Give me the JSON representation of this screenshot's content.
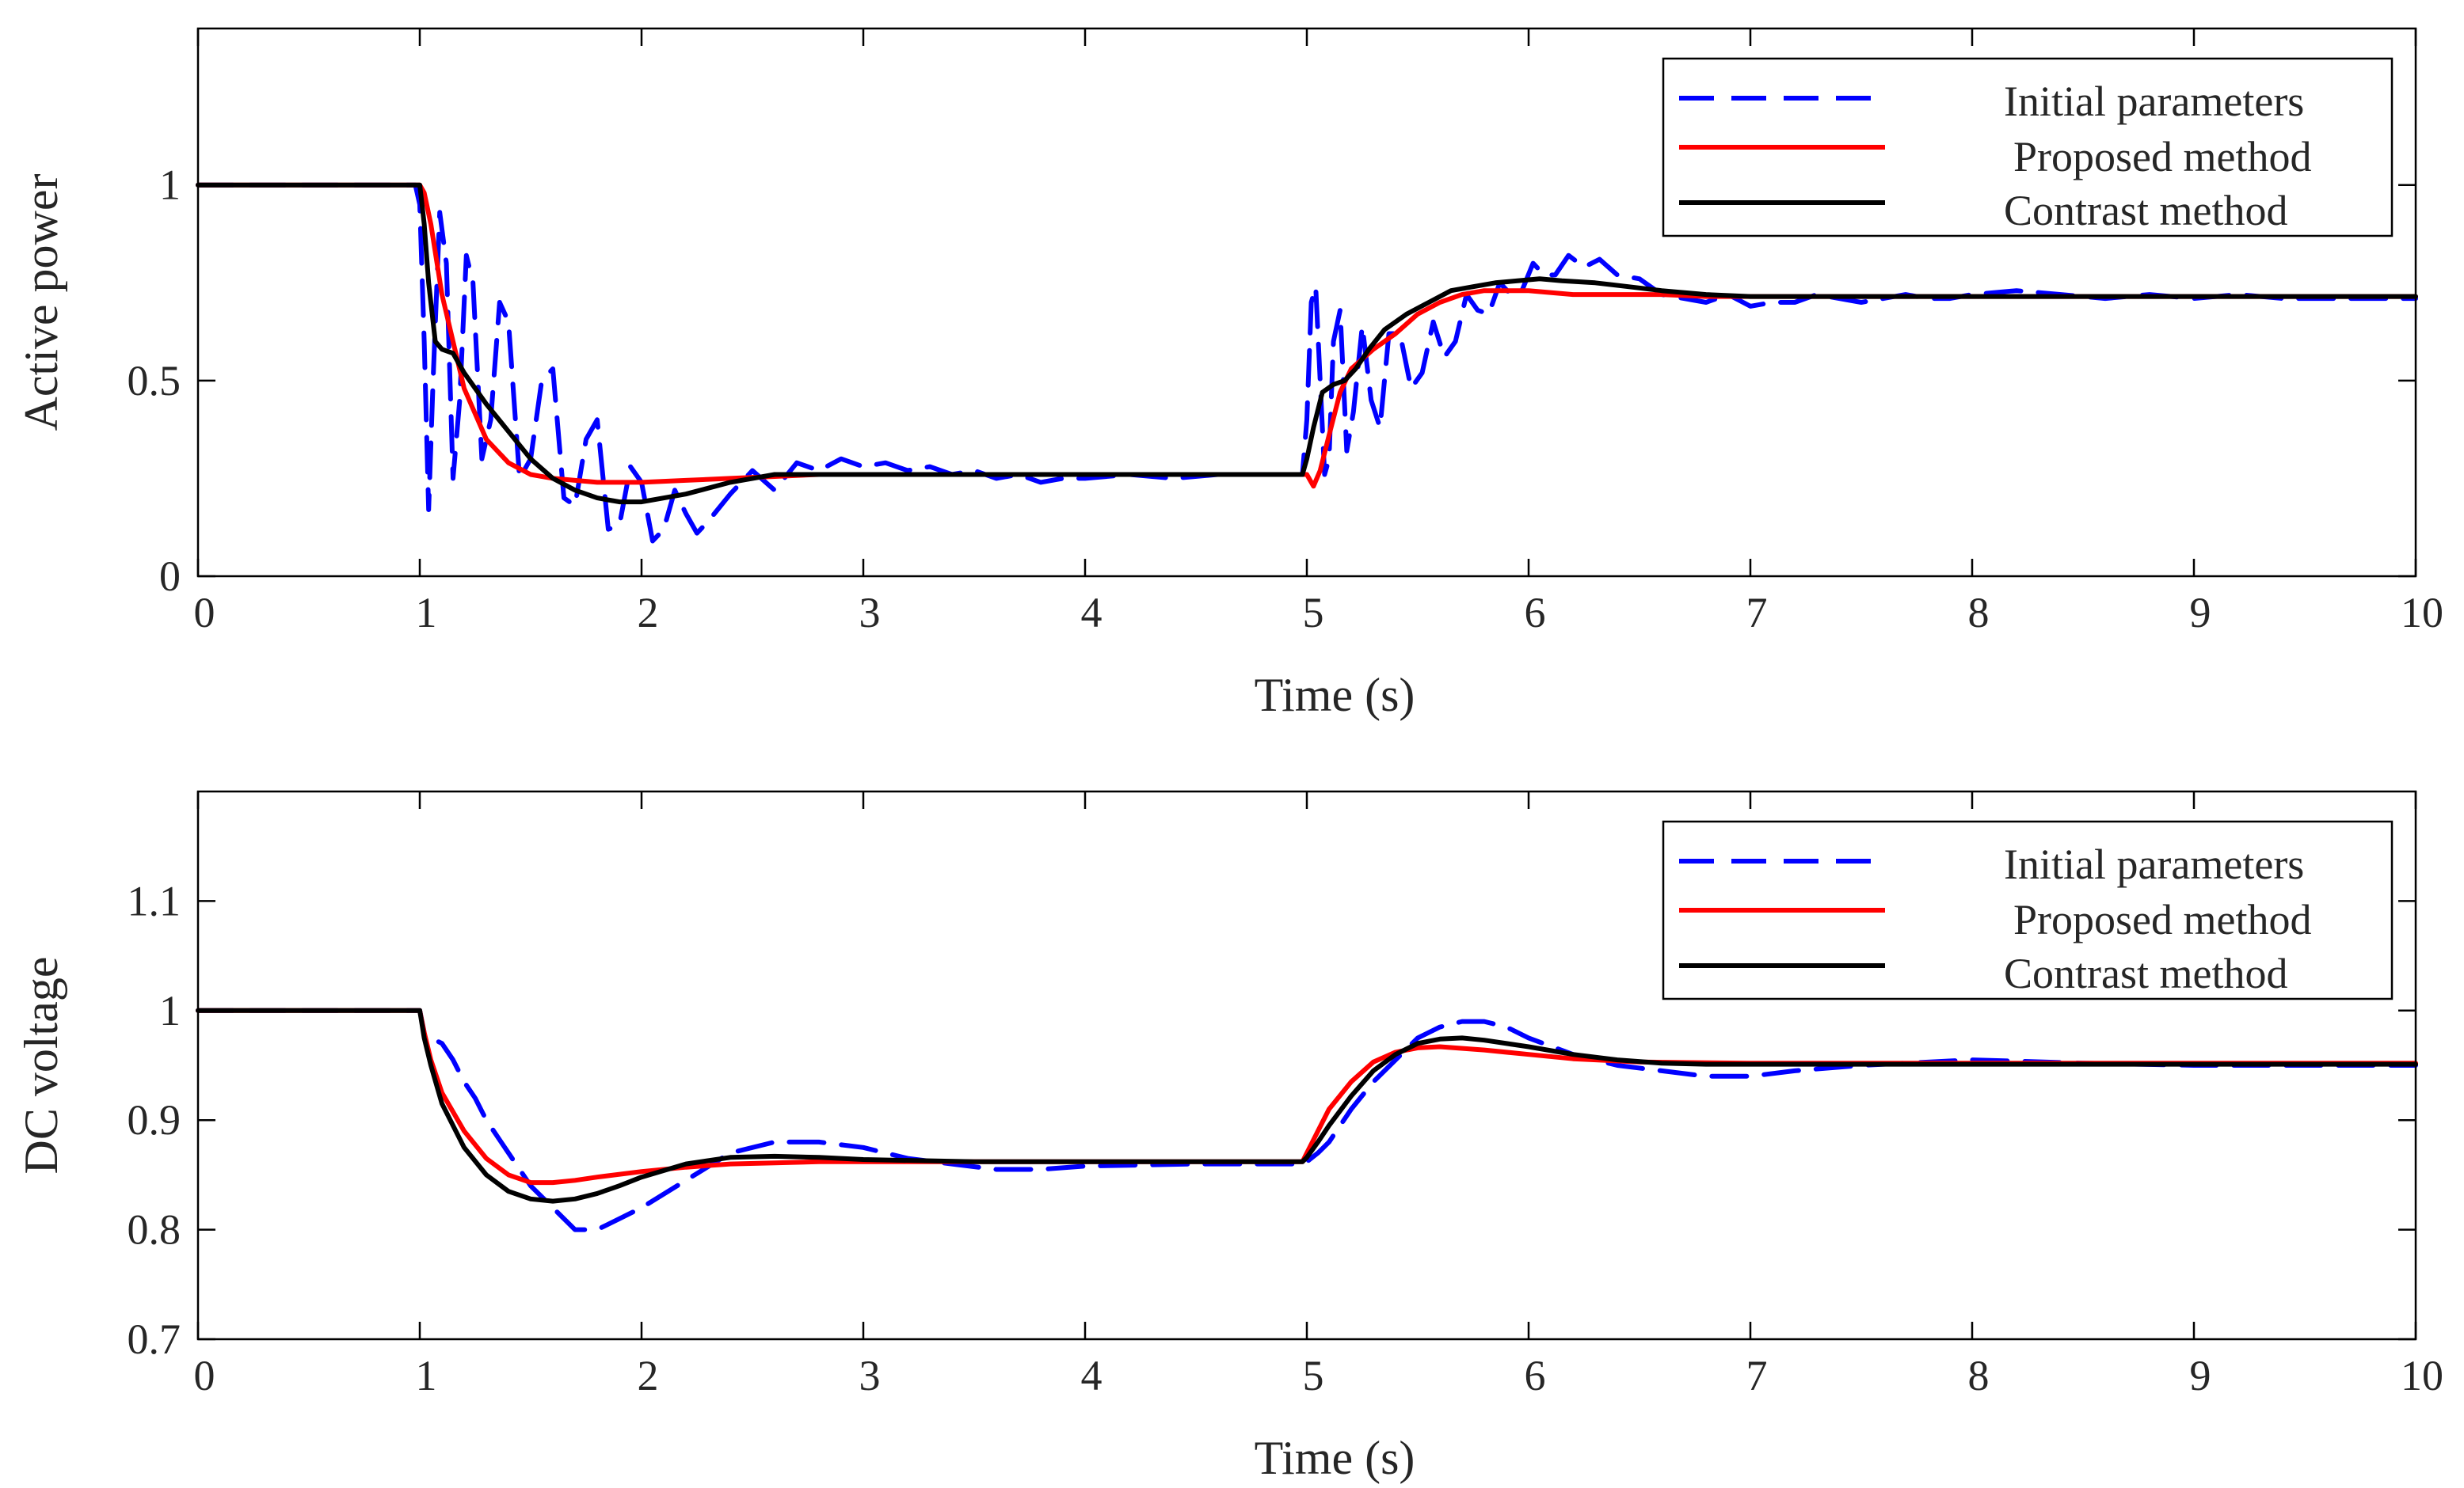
{
  "chart_data": [
    {
      "type": "line",
      "title": "",
      "xlabel": "Time (s)",
      "ylabel": "Active power",
      "xlim": [
        0,
        10
      ],
      "ylim": [
        0,
        1.4
      ],
      "xticks": [
        0,
        1,
        2,
        3,
        4,
        5,
        6,
        7,
        8,
        9,
        10
      ],
      "xtick_labels": [
        "0",
        "1",
        "2",
        "3",
        "4",
        "5",
        "6",
        "7",
        "8",
        "9",
        "10"
      ],
      "yticks": [
        0,
        0.5,
        1
      ],
      "ytick_labels": [
        "0",
        "0.5",
        "1"
      ],
      "legend_position": "top-right",
      "series": [
        {
          "name": "Initial parameters",
          "color": "#0000ff",
          "dash": "dashed",
          "x": [
            0,
            0.98,
            1.0,
            1.02,
            1.04,
            1.06,
            1.09,
            1.12,
            1.15,
            1.18,
            1.21,
            1.24,
            1.28,
            1.32,
            1.36,
            1.4,
            1.45,
            1.5,
            1.55,
            1.6,
            1.65,
            1.7,
            1.75,
            1.8,
            1.85,
            1.9,
            1.95,
            2.0,
            2.05,
            2.1,
            2.15,
            2.2,
            2.25,
            2.3,
            2.4,
            2.5,
            2.6,
            2.7,
            2.8,
            2.9,
            3.0,
            3.1,
            3.2,
            3.3,
            3.4,
            3.5,
            3.6,
            3.7,
            3.8,
            3.9,
            4.0,
            4.2,
            4.4,
            4.6,
            4.8,
            4.98,
            5.0,
            5.02,
            5.04,
            5.06,
            5.08,
            5.1,
            5.12,
            5.15,
            5.18,
            5.21,
            5.25,
            5.29,
            5.33,
            5.37,
            5.42,
            5.47,
            5.52,
            5.57,
            5.62,
            5.67,
            5.72,
            5.77,
            5.82,
            5.87,
            5.92,
            5.97,
            6.02,
            6.07,
            6.12,
            6.18,
            6.25,
            6.32,
            6.4,
            6.5,
            6.6,
            6.7,
            6.8,
            6.9,
            7.0,
            7.1,
            7.2,
            7.3,
            7.4,
            7.5,
            7.6,
            7.7,
            7.8,
            7.9,
            8.0,
            8.2,
            8.4,
            8.6,
            8.8,
            9.0,
            9.2,
            9.4,
            9.6,
            9.8,
            10.0
          ],
          "y": [
            1.0,
            1.0,
            0.95,
            0.6,
            0.17,
            0.5,
            0.93,
            0.8,
            0.25,
            0.45,
            0.82,
            0.75,
            0.3,
            0.4,
            0.7,
            0.65,
            0.25,
            0.3,
            0.5,
            0.53,
            0.2,
            0.18,
            0.35,
            0.4,
            0.12,
            0.13,
            0.28,
            0.24,
            0.09,
            0.12,
            0.22,
            0.16,
            0.11,
            0.14,
            0.21,
            0.27,
            0.22,
            0.29,
            0.27,
            0.3,
            0.28,
            0.29,
            0.27,
            0.28,
            0.26,
            0.27,
            0.25,
            0.26,
            0.24,
            0.25,
            0.25,
            0.26,
            0.25,
            0.26,
            0.26,
            0.26,
            0.4,
            0.7,
            0.74,
            0.5,
            0.26,
            0.3,
            0.6,
            0.68,
            0.32,
            0.42,
            0.64,
            0.45,
            0.38,
            0.62,
            0.62,
            0.48,
            0.52,
            0.65,
            0.56,
            0.6,
            0.72,
            0.68,
            0.67,
            0.75,
            0.72,
            0.73,
            0.8,
            0.77,
            0.77,
            0.82,
            0.79,
            0.81,
            0.77,
            0.76,
            0.72,
            0.71,
            0.7,
            0.72,
            0.69,
            0.7,
            0.7,
            0.72,
            0.71,
            0.7,
            0.71,
            0.72,
            0.71,
            0.71,
            0.72,
            0.73,
            0.72,
            0.71,
            0.72,
            0.71,
            0.72,
            0.71,
            0.71,
            0.71,
            0.71
          ]
        },
        {
          "name": "Proposed method",
          "color": "#ff0000",
          "dash": "solid",
          "x": [
            0,
            1.0,
            1.02,
            1.05,
            1.1,
            1.2,
            1.3,
            1.4,
            1.5,
            1.6,
            1.7,
            1.8,
            1.9,
            2.0,
            2.2,
            2.4,
            2.6,
            2.8,
            3.0,
            3.5,
            4.0,
            4.5,
            4.98,
            5.0,
            5.03,
            5.06,
            5.1,
            5.15,
            5.2,
            5.3,
            5.4,
            5.5,
            5.6,
            5.7,
            5.8,
            5.9,
            6.0,
            6.2,
            6.4,
            6.6,
            6.8,
            7.0,
            7.5,
            8.0,
            9.0,
            10.0
          ],
          "y": [
            1.0,
            1.0,
            0.98,
            0.9,
            0.72,
            0.48,
            0.35,
            0.29,
            0.26,
            0.25,
            0.245,
            0.24,
            0.24,
            0.24,
            0.245,
            0.25,
            0.255,
            0.26,
            0.26,
            0.26,
            0.26,
            0.26,
            0.26,
            0.26,
            0.23,
            0.27,
            0.36,
            0.47,
            0.53,
            0.58,
            0.62,
            0.67,
            0.7,
            0.72,
            0.73,
            0.73,
            0.73,
            0.72,
            0.72,
            0.72,
            0.715,
            0.715,
            0.715,
            0.715,
            0.715,
            0.715
          ]
        },
        {
          "name": "Contrast method",
          "color": "#000000",
          "dash": "solid",
          "x": [
            0,
            1.0,
            1.02,
            1.04,
            1.07,
            1.1,
            1.15,
            1.2,
            1.25,
            1.3,
            1.4,
            1.5,
            1.6,
            1.7,
            1.8,
            1.9,
            2.0,
            2.2,
            2.4,
            2.6,
            2.8,
            3.0,
            3.5,
            4.0,
            4.5,
            4.98,
            5.0,
            5.03,
            5.07,
            5.12,
            5.17,
            5.22,
            5.28,
            5.35,
            5.45,
            5.55,
            5.65,
            5.75,
            5.85,
            5.95,
            6.05,
            6.15,
            6.3,
            6.45,
            6.6,
            6.8,
            7.0,
            7.5,
            8.0,
            9.0,
            10.0
          ],
          "y": [
            1.0,
            1.0,
            0.9,
            0.75,
            0.6,
            0.58,
            0.57,
            0.52,
            0.48,
            0.44,
            0.37,
            0.3,
            0.25,
            0.22,
            0.2,
            0.19,
            0.19,
            0.21,
            0.24,
            0.26,
            0.26,
            0.26,
            0.26,
            0.26,
            0.26,
            0.26,
            0.3,
            0.38,
            0.47,
            0.49,
            0.5,
            0.53,
            0.58,
            0.63,
            0.67,
            0.7,
            0.73,
            0.74,
            0.75,
            0.755,
            0.76,
            0.755,
            0.75,
            0.74,
            0.73,
            0.72,
            0.715,
            0.715,
            0.715,
            0.715,
            0.715
          ]
        }
      ]
    },
    {
      "type": "line",
      "title": "",
      "xlabel": "Time (s)",
      "ylabel": "DC voltage",
      "xlim": [
        0,
        10
      ],
      "ylim": [
        0.7,
        1.2
      ],
      "xticks": [
        0,
        1,
        2,
        3,
        4,
        5,
        6,
        7,
        8,
        9,
        10
      ],
      "xtick_labels": [
        "0",
        "1",
        "2",
        "3",
        "4",
        "5",
        "6",
        "7",
        "8",
        "9",
        "10"
      ],
      "yticks": [
        0.7,
        0.8,
        0.9,
        1.0,
        1.1
      ],
      "ytick_labels": [
        "0.7",
        "0.8",
        "0.9",
        "1",
        "1.1"
      ],
      "legend_position": "top-right",
      "series": [
        {
          "name": "Initial parameters",
          "color": "#0000ff",
          "dash": "dashed",
          "x": [
            0,
            1.0,
            1.02,
            1.05,
            1.1,
            1.15,
            1.2,
            1.25,
            1.3,
            1.4,
            1.5,
            1.6,
            1.7,
            1.75,
            1.8,
            1.9,
            2.0,
            2.2,
            2.4,
            2.6,
            2.8,
            3.0,
            3.2,
            3.4,
            3.6,
            3.8,
            4.0,
            4.5,
            4.98,
            5.0,
            5.05,
            5.1,
            5.2,
            5.3,
            5.4,
            5.5,
            5.6,
            5.7,
            5.8,
            5.9,
            6.0,
            6.2,
            6.4,
            6.6,
            6.8,
            7.0,
            7.2,
            7.5,
            8.0,
            8.5,
            9.0,
            10.0
          ],
          "y": [
            1.0,
            1.0,
            0.98,
            0.975,
            0.97,
            0.955,
            0.935,
            0.92,
            0.9,
            0.87,
            0.84,
            0.82,
            0.8,
            0.8,
            0.8,
            0.81,
            0.82,
            0.845,
            0.87,
            0.88,
            0.88,
            0.875,
            0.865,
            0.86,
            0.855,
            0.855,
            0.858,
            0.86,
            0.86,
            0.862,
            0.87,
            0.88,
            0.91,
            0.935,
            0.955,
            0.975,
            0.985,
            0.99,
            0.99,
            0.985,
            0.975,
            0.96,
            0.95,
            0.945,
            0.94,
            0.94,
            0.945,
            0.95,
            0.955,
            0.952,
            0.95,
            0.95
          ]
        },
        {
          "name": "Proposed method",
          "color": "#ff0000",
          "dash": "solid",
          "x": [
            0,
            1.0,
            1.02,
            1.05,
            1.1,
            1.2,
            1.3,
            1.4,
            1.5,
            1.6,
            1.7,
            1.8,
            2.0,
            2.2,
            2.4,
            2.6,
            2.8,
            3.0,
            3.5,
            4.0,
            4.5,
            4.98,
            5.0,
            5.05,
            5.1,
            5.2,
            5.3,
            5.4,
            5.5,
            5.6,
            5.8,
            6.0,
            6.2,
            6.5,
            7.0,
            7.5,
            8.0,
            9.0,
            10.0
          ],
          "y": [
            1.0,
            1.0,
            0.98,
            0.955,
            0.925,
            0.89,
            0.865,
            0.85,
            0.843,
            0.843,
            0.845,
            0.848,
            0.853,
            0.857,
            0.86,
            0.861,
            0.862,
            0.862,
            0.862,
            0.862,
            0.862,
            0.862,
            0.87,
            0.89,
            0.91,
            0.935,
            0.953,
            0.962,
            0.966,
            0.967,
            0.964,
            0.96,
            0.956,
            0.953,
            0.952,
            0.952,
            0.952,
            0.952,
            0.952
          ]
        },
        {
          "name": "Contrast method",
          "color": "#000000",
          "dash": "solid",
          "x": [
            0,
            1.0,
            1.02,
            1.05,
            1.1,
            1.2,
            1.3,
            1.4,
            1.5,
            1.6,
            1.7,
            1.8,
            1.9,
            2.0,
            2.2,
            2.4,
            2.6,
            2.8,
            3.0,
            3.5,
            4.0,
            4.5,
            4.98,
            5.0,
            5.05,
            5.1,
            5.2,
            5.3,
            5.4,
            5.5,
            5.6,
            5.7,
            5.8,
            6.0,
            6.2,
            6.4,
            6.6,
            6.8,
            7.0,
            7.5,
            8.0,
            9.0,
            10.0
          ],
          "y": [
            1.0,
            1.0,
            0.975,
            0.95,
            0.915,
            0.875,
            0.85,
            0.835,
            0.828,
            0.826,
            0.828,
            0.833,
            0.84,
            0.848,
            0.86,
            0.866,
            0.867,
            0.866,
            0.864,
            0.862,
            0.862,
            0.862,
            0.862,
            0.866,
            0.88,
            0.895,
            0.922,
            0.945,
            0.96,
            0.97,
            0.974,
            0.975,
            0.973,
            0.967,
            0.96,
            0.955,
            0.952,
            0.951,
            0.951,
            0.951,
            0.951,
            0.951,
            0.951
          ]
        }
      ]
    }
  ]
}
